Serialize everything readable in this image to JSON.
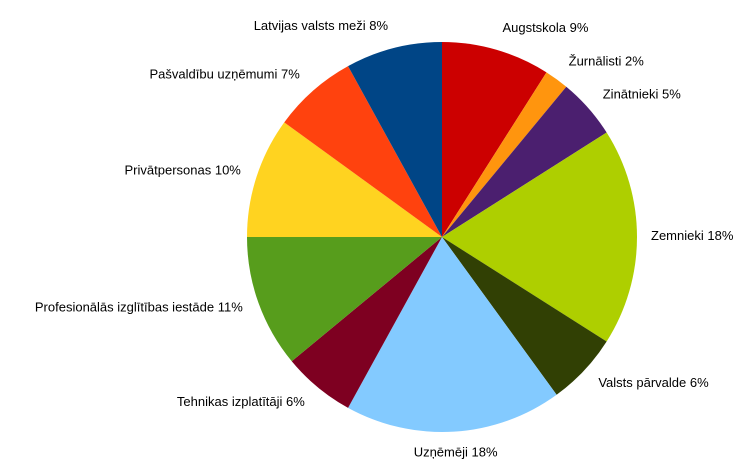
{
  "chart_data": {
    "type": "pie",
    "categories": [
      "Augstskola",
      "Žurnālisti",
      "Zinātnieki",
      "Zemnieki",
      "Valsts pārvalde",
      "Uzņēmēji",
      "Tehnikas izplatītāji",
      "Profesionālās izglītības iestāde",
      "Privātpersonas",
      "Pašvaldību uzņēmumi",
      "Latvijas valsts meži"
    ],
    "values": [
      9,
      2,
      5,
      18,
      6,
      18,
      6,
      11,
      10,
      7,
      8
    ],
    "value_labels": [
      "9%",
      "2%",
      "5%",
      "18%",
      "6%",
      "18%",
      "6%",
      "11%",
      "10%",
      "7%",
      "8%"
    ],
    "colors": [
      "#cc0000",
      "#ff950e",
      "#4b1f6f",
      "#aecf00",
      "#314004",
      "#83caff",
      "#7e0021",
      "#579d1c",
      "#ffd320",
      "#ff420e",
      "#004586"
    ]
  }
}
